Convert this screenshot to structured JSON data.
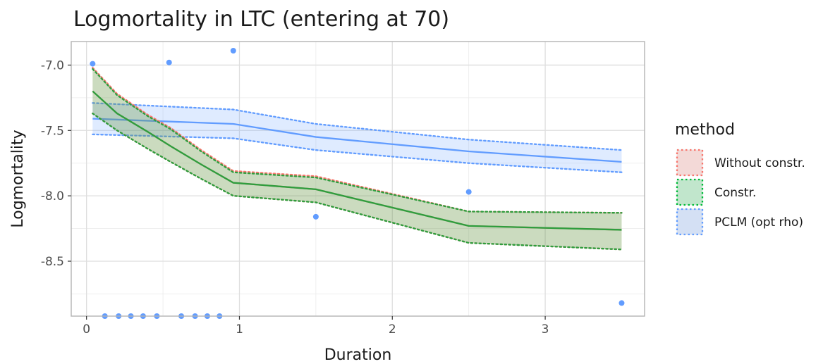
{
  "chart_data": {
    "type": "line",
    "title": "Logmortality in LTC (entering at 70)",
    "xlabel": "Duration",
    "ylabel": "Logmortality",
    "xlim": [
      -0.1,
      3.65
    ],
    "ylim": [
      -8.92,
      -6.82
    ],
    "x_ticks": [
      0,
      1,
      2,
      3
    ],
    "x_tick_labels": [
      "0",
      "1",
      "2",
      "3"
    ],
    "y_ticks": [
      -7.0,
      -7.5,
      -8.0,
      -8.5
    ],
    "y_tick_labels": [
      "-7.0",
      "-7.5",
      "-8.0",
      "-8.5"
    ],
    "grid": true,
    "legend": {
      "title": "method",
      "position": "right",
      "entries": [
        {
          "label": "Without constr.",
          "line_color": "#F8766D",
          "fill_color": "#F8766D"
        },
        {
          "label": "Constr.",
          "line_color": "#00BA38",
          "fill_color": "#00BA38"
        },
        {
          "label": "PCLM (opt rho)",
          "line_color": "#619CFF",
          "fill_color": "#619CFF"
        }
      ]
    },
    "bands": [
      {
        "name": "PCLM (opt rho)",
        "x": [
          0.04,
          0.96,
          1.5,
          2.5,
          3.5
        ],
        "y": [
          -7.41,
          -7.45,
          -7.55,
          -7.66,
          -7.74
        ],
        "lower": [
          -7.53,
          -7.56,
          -7.65,
          -7.75,
          -7.82
        ],
        "upper": [
          -7.29,
          -7.34,
          -7.45,
          -7.57,
          -7.65
        ],
        "line_color": "#619CFF",
        "fill_color": "#619CFF",
        "fill_opacity": 0.2
      },
      {
        "name": "Without constr.",
        "x": [
          0.04,
          0.2,
          0.4,
          0.55,
          0.75,
          0.96,
          1.5,
          2.5,
          3.5
        ],
        "y": [
          -7.2,
          -7.37,
          -7.51,
          -7.62,
          -7.76,
          -7.9,
          -7.95,
          -8.23,
          -8.26
        ],
        "lower": [
          -7.37,
          -7.5,
          -7.64,
          -7.74,
          -7.87,
          -8.0,
          -8.05,
          -8.36,
          -8.41
        ],
        "upper": [
          -7.02,
          -7.22,
          -7.38,
          -7.48,
          -7.65,
          -7.81,
          -7.85,
          -8.12,
          -8.13
        ],
        "line_color": "#F8766D",
        "fill_color": "#F8766D",
        "fill_opacity": 0.2
      },
      {
        "name": "Constr.",
        "x": [
          0.04,
          0.2,
          0.4,
          0.55,
          0.75,
          0.96,
          1.5,
          2.5,
          3.5
        ],
        "y": [
          -7.2,
          -7.37,
          -7.51,
          -7.62,
          -7.76,
          -7.9,
          -7.95,
          -8.23,
          -8.26
        ],
        "lower": [
          -7.37,
          -7.5,
          -7.64,
          -7.74,
          -7.87,
          -8.0,
          -8.05,
          -8.36,
          -8.41
        ],
        "upper": [
          -7.03,
          -7.23,
          -7.39,
          -7.49,
          -7.66,
          -7.82,
          -7.86,
          -8.12,
          -8.13
        ],
        "line_color": "#2E9E3E",
        "fill_color": "#00BA38",
        "fill_opacity": 0.2
      }
    ],
    "points": {
      "color": "#619CFF",
      "x": [
        0.04,
        0.54,
        0.96,
        1.5,
        2.5,
        3.5,
        0.12,
        0.21,
        0.29,
        0.37,
        0.46,
        0.62,
        0.71,
        0.79,
        0.87
      ],
      "y": [
        -6.99,
        -6.98,
        -6.89,
        -8.16,
        -7.97,
        -8.82,
        -8.92,
        -8.92,
        -8.92,
        -8.92,
        -8.92,
        -8.92,
        -8.92,
        -8.92,
        -8.92
      ]
    }
  }
}
